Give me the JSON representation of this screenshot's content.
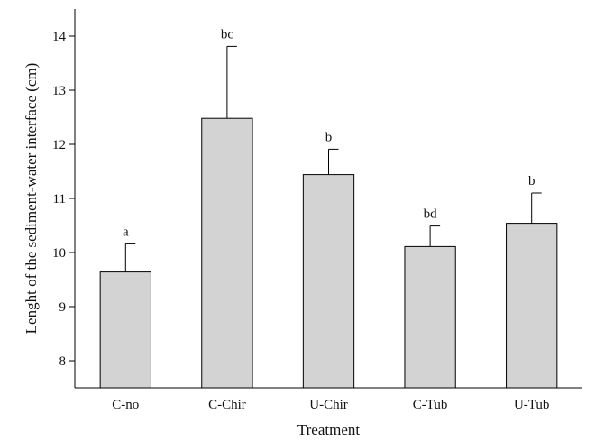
{
  "chart_data": {
    "type": "bar",
    "xlabel": "Treatment",
    "ylabel": "Lenght of the sediment-water interface (cm)",
    "ylim": [
      7.5,
      14.5
    ],
    "yticks": [
      8,
      9,
      10,
      11,
      12,
      13,
      14
    ],
    "categories": [
      "C-no",
      "C-Chir",
      "U-Chir",
      "C-Tub",
      "U-Tub"
    ],
    "values": [
      9.64,
      12.48,
      11.44,
      10.11,
      10.54
    ],
    "error_upper": [
      0.52,
      1.33,
      0.47,
      0.38,
      0.56
    ],
    "significance_letters": [
      "a",
      "bc",
      "b",
      "bd",
      "b"
    ],
    "bar_color": "#d3d3d3",
    "grid": false
  }
}
